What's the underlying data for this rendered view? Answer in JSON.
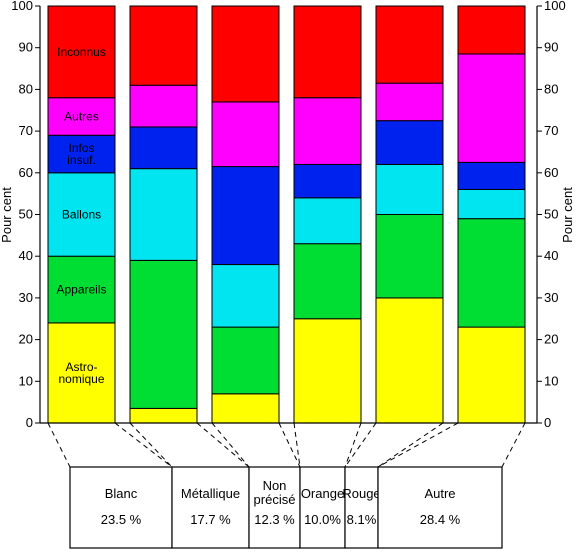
{
  "chart_data": {
    "type": "stacked-bar",
    "ylabel_left": "Pour cent",
    "ylabel_right": "Pour cent",
    "ylim": [
      0,
      100
    ],
    "yticks": [
      0,
      10,
      20,
      30,
      40,
      50,
      60,
      70,
      80,
      90,
      100
    ],
    "series_colors": {
      "astronomique": "#ffff00",
      "appareils": "#00dd33",
      "ballons": "#00e5f0",
      "infos_insuf": "#0022ee",
      "autres": "#ff00ff",
      "inconnus": "#ff0000"
    },
    "segment_labels": [
      {
        "key": "inconnus",
        "lines": [
          "Inconnus"
        ]
      },
      {
        "key": "autres",
        "lines": [
          "Autres"
        ]
      },
      {
        "key": "infos_insuf",
        "lines": [
          "Infos",
          "insuf."
        ]
      },
      {
        "key": "ballons",
        "lines": [
          "Ballons"
        ]
      },
      {
        "key": "appareils",
        "lines": [
          "Appareils"
        ]
      },
      {
        "key": "astronomique",
        "lines": [
          "Astro-",
          "nomique"
        ]
      }
    ],
    "bars": [
      {
        "group": "Blanc",
        "percent": "23.5 %",
        "values": {
          "astronomique": 24,
          "appareils": 16,
          "ballons": 20,
          "infos_insuf": 9,
          "autres": 9,
          "inconnus": 22
        }
      },
      {
        "group": "Métallique",
        "percent": "17.7 %",
        "values": {
          "astronomique": 3.5,
          "appareils": 35.5,
          "ballons": 22,
          "infos_insuf": 10,
          "autres": 10,
          "inconnus": 19
        }
      },
      {
        "group": "Non précisé",
        "percent": "12.3 %",
        "values": {
          "astronomique": 7,
          "appareils": 16,
          "ballons": 15,
          "infos_insuf": 23.5,
          "autres": 15.5,
          "inconnus": 23
        }
      },
      {
        "group": "Orange",
        "percent": "10.0%",
        "values": {
          "astronomique": 25,
          "appareils": 18,
          "ballons": 11,
          "infos_insuf": 8,
          "autres": 16,
          "inconnus": 22
        }
      },
      {
        "group": "Rouge",
        "percent": "8.1%",
        "values": {
          "astronomique": 30,
          "appareils": 20,
          "ballons": 12,
          "infos_insuf": 10.5,
          "autres": 9,
          "inconnus": 18.5
        }
      },
      {
        "group": "Autre",
        "percent": "28.4 %",
        "values": {
          "astronomique": 23,
          "appareils": 26,
          "ballons": 7,
          "infos_insuf": 6.5,
          "autres": 26,
          "inconnus": 11.5
        }
      }
    ],
    "groups": [
      {
        "name_lines": [
          "Blanc"
        ],
        "percent": "23.5 %"
      },
      {
        "name_lines": [
          "Métallique"
        ],
        "percent": "17.7 %"
      },
      {
        "name_lines": [
          "Non",
          "précisé"
        ],
        "percent": "12.3 %"
      },
      {
        "name_lines": [
          "Orange"
        ],
        "percent": "10.0%"
      },
      {
        "name_lines": [
          "Rouge"
        ],
        "percent": "8.1%"
      },
      {
        "name_lines": [
          "Autre"
        ],
        "percent": "28.4 %"
      }
    ]
  }
}
